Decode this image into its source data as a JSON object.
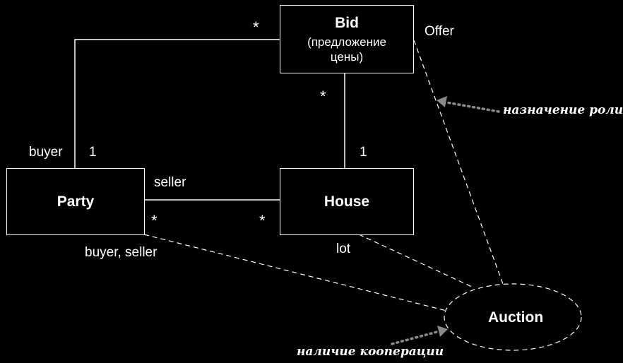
{
  "classes": {
    "bid": {
      "name": "Bid",
      "subtitle_line1": "(предложение",
      "subtitle_line2": "цены)"
    },
    "party": {
      "name": "Party"
    },
    "house": {
      "name": "House"
    }
  },
  "collaboration": {
    "name": "Auction"
  },
  "multiplicities": {
    "bid_party": "*",
    "bid_house": "*",
    "house_bid": "1",
    "party_bid": "1",
    "party_house": "*",
    "house_party": "*"
  },
  "roles": {
    "buyer": "buyer",
    "seller": "seller",
    "offer": "Offer",
    "lot": "lot",
    "buyer_seller": "buyer, seller"
  },
  "notes": {
    "role_assignment": "назначение роли",
    "collaboration_presence": "наличие кооперации"
  },
  "colors": {
    "background": "#000000",
    "foreground": "#ffffff",
    "note_arrow": "#8a8a8a"
  }
}
